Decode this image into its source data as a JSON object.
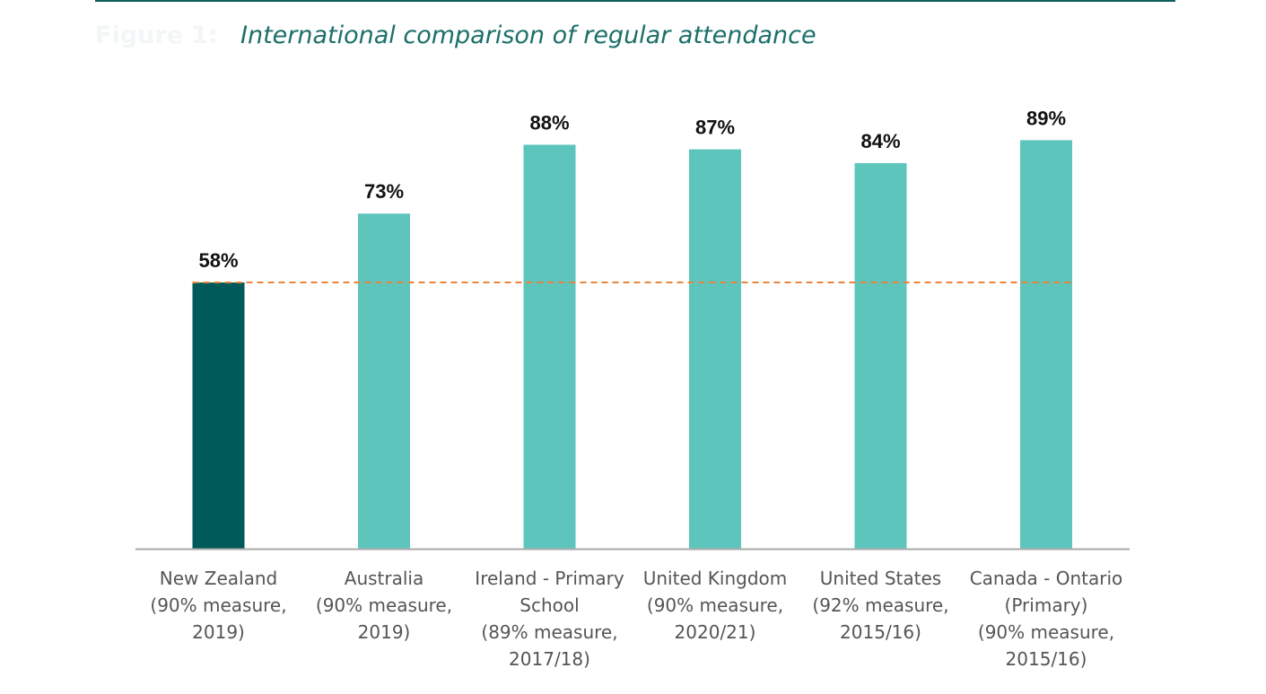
{
  "figure": {
    "label": "Figure 1:",
    "title": "International comparison of regular attendance"
  },
  "colors": {
    "highlight_bar": "#005a5a",
    "bar": "#5ec5bd",
    "reference_line": "#e8843c",
    "axis": "#aaaaaa",
    "rule": "#0f5f5a"
  },
  "chart_data": {
    "type": "bar",
    "title": "International comparison of regular attendance",
    "categories": [
      [
        "New Zealand",
        "(90% measure,",
        "2019)"
      ],
      [
        "Australia",
        "(90% measure,",
        "2019)"
      ],
      [
        "Ireland - Primary",
        "School",
        "(89% measure,",
        "2017/18)"
      ],
      [
        "United Kingdom",
        "(90% measure,",
        "2020/21)"
      ],
      [
        "United States",
        "(92% measure,",
        "2015/16)"
      ],
      [
        "Canada - Ontario",
        "(Primary)",
        "(90% measure,",
        "2015/16)"
      ]
    ],
    "values": [
      58,
      73,
      88,
      87,
      84,
      89
    ],
    "value_labels": [
      "58%",
      "73%",
      "88%",
      "87%",
      "84%",
      "89%"
    ],
    "highlight_index": 0,
    "reference_line": 58,
    "xlabel": "",
    "ylabel": "",
    "grid": false,
    "legend": "none"
  }
}
